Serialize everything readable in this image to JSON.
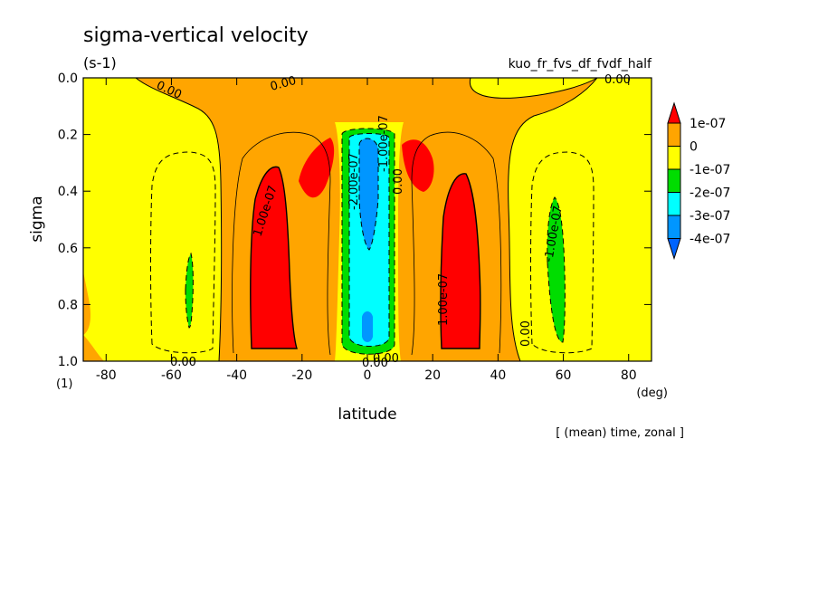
{
  "chart_data": {
    "type": "contour",
    "title": "sigma-vertical velocity",
    "units": "(s-1)",
    "experiment": "kuo_fr_fvs_df_fvdf_half",
    "xlabel": "latitude",
    "x_units": "(deg)",
    "ylabel": "sigma",
    "y_units": "(1)",
    "footer": "[ (mean) time, zonal ]",
    "xlim": [
      -87,
      87
    ],
    "ylim": [
      0.0,
      1.0
    ],
    "x_ticks": [
      "-80",
      "-60",
      "-40",
      "-20",
      "0",
      "20",
      "40",
      "60",
      "80"
    ],
    "y_ticks": [
      "0.0",
      "0.2",
      "0.4",
      "0.6",
      "0.8",
      "1.0"
    ],
    "colorbar": {
      "labels": [
        "1e-07",
        "0",
        "-1e-07",
        "-2e-07",
        "-3e-07",
        "-4e-07"
      ],
      "colors": [
        "#ff0000",
        "#ffa500",
        "#ffff00",
        "#00dd00",
        "#00ffff",
        "#0096ff",
        "#0064ff"
      ]
    },
    "contour_labels": [
      "0.00",
      "0.00",
      "0.00",
      "0.00",
      "0.00",
      "0.00",
      "1.00e-07",
      "1.00e-07",
      "-2.00e-07",
      "-1.00e-07",
      "-1.00e-07",
      "0.00",
      "0.00"
    ],
    "colors": {
      "positive_high": "#ff0000",
      "positive": "#ffa500",
      "near_zero_negative": "#ffff00",
      "negative_2": "#00dd00",
      "negative_3": "#00ffff",
      "negative_4": "#0096ff"
    }
  }
}
